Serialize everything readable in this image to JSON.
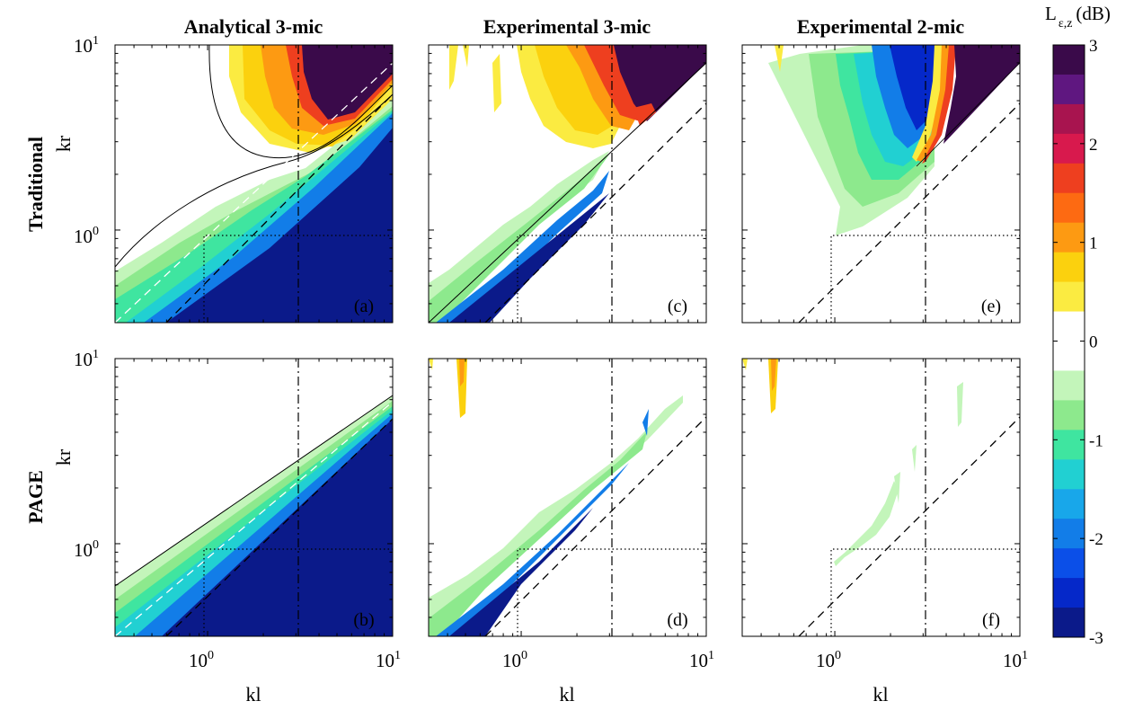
{
  "figure": {
    "columns": [
      "Analytical 3-mic",
      "Experimental 3-mic",
      "Experimental 2-mic"
    ],
    "rows": [
      "Traditional",
      "PAGE"
    ],
    "colorbar": {
      "label_main": "L",
      "label_sub": "ε,z",
      "label_unit": "(dB)",
      "ticks": [
        "3",
        "2",
        "1",
        "0",
        "-1",
        "-2",
        "-3"
      ],
      "range": [
        -3,
        3
      ],
      "step": 0.5,
      "colors": [
        "#3a0a4a",
        "#5f1780",
        "#a8144f",
        "#d8194d",
        "#ee3f1f",
        "#fd6a12",
        "#fd9a12",
        "#fbd10e",
        "#fbeb41",
        "#ffffff",
        "#ffffff",
        "#c3f5ba",
        "#8de98d",
        "#3fe5a0",
        "#21d0d2",
        "#18a7ea",
        "#127de8",
        "#0b4fe8",
        "#0528c9",
        "#0b1a8a"
      ]
    }
  },
  "chart_data": [
    {
      "panel": "(a)",
      "row": "Traditional",
      "column": "Analytical 3-mic",
      "type": "heatmap",
      "xlabel": "",
      "ylabel": "kr",
      "xscale": "log",
      "yscale": "log",
      "xlim": [
        0.316,
        10
      ],
      "ylim": [
        0.316,
        10
      ],
      "xticks": [
        "10^0",
        "10^1"
      ],
      "yticks": [
        "10^0",
        "10^1"
      ],
      "reference_lines": {
        "kr_equals_kl": true,
        "kr_equals_2kl": true,
        "kl_eq_pi": 3.1416,
        "kl_eq_1": 1.0,
        "kr_eq_1": 1.0
      },
      "value_range_db": [
        -3,
        3
      ]
    },
    {
      "panel": "(b)",
      "row": "PAGE",
      "column": "Analytical 3-mic",
      "type": "heatmap",
      "xlabel": "kl",
      "ylabel": "kr",
      "xscale": "log",
      "yscale": "log",
      "xlim": [
        0.316,
        10
      ],
      "ylim": [
        0.316,
        10
      ],
      "xticks": [
        "10^0",
        "10^1"
      ],
      "yticks": [
        "10^0",
        "10^1"
      ],
      "reference_lines": {
        "kr_equals_kl": true,
        "kr_equals_2kl": true,
        "kl_eq_pi": 3.1416,
        "kl_eq_1": 1.0,
        "kr_eq_1": 1.0
      },
      "value_range_db": [
        -3,
        0
      ]
    },
    {
      "panel": "(c)",
      "row": "Traditional",
      "column": "Experimental 3-mic",
      "type": "heatmap",
      "xlabel": "",
      "ylabel": "",
      "xscale": "log",
      "yscale": "log",
      "xlim": [
        0.316,
        10
      ],
      "ylim": [
        0.316,
        10
      ],
      "reference_lines": {
        "kr_equals_kl": true,
        "kr_equals_half_kl": true,
        "kl_eq_pi": 3.1416,
        "kl_eq_1": 1.0,
        "kr_eq_1": 1.0
      },
      "value_range_db": [
        -3,
        3
      ]
    },
    {
      "panel": "(d)",
      "row": "PAGE",
      "column": "Experimental 3-mic",
      "type": "heatmap",
      "xlabel": "kl",
      "ylabel": "",
      "xscale": "log",
      "yscale": "log",
      "xlim": [
        0.316,
        10
      ],
      "ylim": [
        0.316,
        10
      ],
      "xticks": [
        "10^0",
        "10^1"
      ],
      "reference_lines": {
        "kr_equals_kl": true,
        "kr_equals_half_kl": true,
        "kl_eq_pi": 3.1416,
        "kl_eq_1": 1.0,
        "kr_eq_1": 1.0
      },
      "value_range_db": [
        -3,
        1
      ]
    },
    {
      "panel": "(e)",
      "row": "Traditional",
      "column": "Experimental 2-mic",
      "type": "heatmap",
      "xlabel": "",
      "ylabel": "",
      "xscale": "log",
      "yscale": "log",
      "xlim": [
        0.316,
        10
      ],
      "ylim": [
        0.316,
        10
      ],
      "reference_lines": {
        "kr_equals_kl": true,
        "kr_equals_half_kl": true,
        "kl_eq_pi": 3.1416,
        "kl_eq_1": 1.0,
        "kr_eq_1": 1.0
      },
      "value_range_db": [
        -3,
        3
      ]
    },
    {
      "panel": "(f)",
      "row": "PAGE",
      "column": "Experimental 2-mic",
      "type": "heatmap",
      "xlabel": "kl",
      "ylabel": "",
      "xscale": "log",
      "yscale": "log",
      "xlim": [
        0.316,
        10
      ],
      "ylim": [
        0.316,
        10
      ],
      "xticks": [
        "10^0",
        "10^1"
      ],
      "reference_lines": {
        "kr_equals_kl": true,
        "kr_equals_half_kl": true,
        "kl_eq_pi": 3.1416,
        "kl_eq_1": 1.0,
        "kr_eq_1": 1.0
      },
      "value_range_db": [
        -1,
        1
      ]
    }
  ]
}
